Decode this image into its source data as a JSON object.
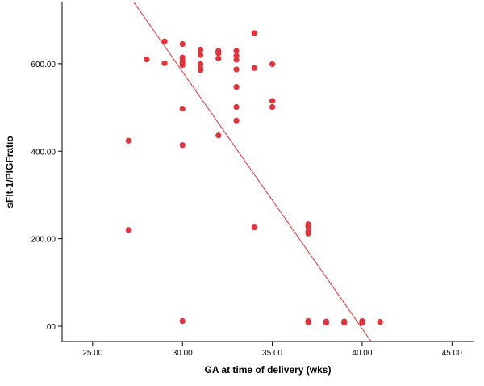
{
  "chart_data": {
    "type": "scatter",
    "title": "",
    "xlabel": "GA at time of delivery (wks)",
    "ylabel": "sFlt-1/PlGFratio",
    "xlim": [
      23.3,
      46.2
    ],
    "ylim": [
      -35,
      740
    ],
    "x_ticks": [
      25,
      30,
      35,
      40,
      45
    ],
    "x_tick_labels": [
      "25.00",
      "30.00",
      "35.00",
      "40.00",
      "45.00"
    ],
    "y_ticks": [
      0,
      200,
      400,
      600
    ],
    "y_tick_labels": [
      ".00",
      "200.00",
      "400.00",
      "600.00"
    ],
    "grid": false,
    "legend": "none",
    "colors": {
      "points": "#e8303a",
      "fit_line": "#e8303a",
      "axes": "#000000"
    },
    "points": [
      {
        "x": 27,
        "y": 424
      },
      {
        "x": 27,
        "y": 220
      },
      {
        "x": 28,
        "y": 610
      },
      {
        "x": 29,
        "y": 651
      },
      {
        "x": 29,
        "y": 601
      },
      {
        "x": 30,
        "y": 645
      },
      {
        "x": 30,
        "y": 614
      },
      {
        "x": 30,
        "y": 607
      },
      {
        "x": 30,
        "y": 601
      },
      {
        "x": 30,
        "y": 597
      },
      {
        "x": 30,
        "y": 497
      },
      {
        "x": 30,
        "y": 414
      },
      {
        "x": 30,
        "y": 12
      },
      {
        "x": 31,
        "y": 632
      },
      {
        "x": 31,
        "y": 620
      },
      {
        "x": 31,
        "y": 599
      },
      {
        "x": 31,
        "y": 590
      },
      {
        "x": 31,
        "y": 585
      },
      {
        "x": 32,
        "y": 629
      },
      {
        "x": 32,
        "y": 624
      },
      {
        "x": 32,
        "y": 612
      },
      {
        "x": 32,
        "y": 436
      },
      {
        "x": 33,
        "y": 629
      },
      {
        "x": 33,
        "y": 618
      },
      {
        "x": 33,
        "y": 609
      },
      {
        "x": 33,
        "y": 587
      },
      {
        "x": 33,
        "y": 547
      },
      {
        "x": 33,
        "y": 501
      },
      {
        "x": 33,
        "y": 470
      },
      {
        "x": 34,
        "y": 670
      },
      {
        "x": 34,
        "y": 590
      },
      {
        "x": 34,
        "y": 226
      },
      {
        "x": 35,
        "y": 599
      },
      {
        "x": 35,
        "y": 515
      },
      {
        "x": 35,
        "y": 501
      },
      {
        "x": 37,
        "y": 233
      },
      {
        "x": 37,
        "y": 228
      },
      {
        "x": 37,
        "y": 217
      },
      {
        "x": 37,
        "y": 212
      },
      {
        "x": 37,
        "y": 12
      },
      {
        "x": 37,
        "y": 9
      },
      {
        "x": 38,
        "y": 11
      },
      {
        "x": 38,
        "y": 8
      },
      {
        "x": 39,
        "y": 11
      },
      {
        "x": 39,
        "y": 8
      },
      {
        "x": 40,
        "y": 12
      },
      {
        "x": 40,
        "y": 8
      },
      {
        "x": 41,
        "y": 10
      }
    ],
    "fit_line": [
      {
        "x": 27.3,
        "y": 740
      },
      {
        "x": 40.5,
        "y": -35
      }
    ]
  }
}
